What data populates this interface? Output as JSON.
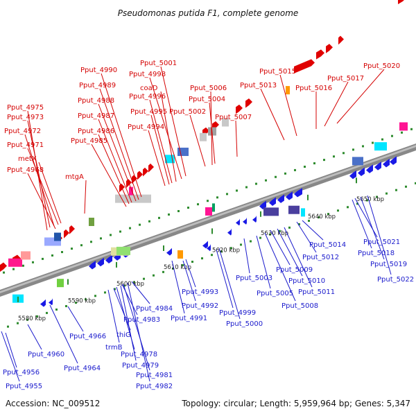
{
  "title": "Pseudomonas putida F1, complete genome",
  "footer": {
    "accession": "Accession: NC_009512",
    "summary": "Topology: circular; Length: 5,959,964 bp; Genes: 5,347"
  },
  "colors": {
    "forward": "#e00000",
    "reverse": "#1a1ae6",
    "backbone": "#888888",
    "tick": "#2e8b2e",
    "label_red": "#d40000",
    "label_blue": "#1a1acc"
  },
  "ticks": [
    "5580 kbp",
    "5590 kbp",
    "5600 kbp",
    "5610 kbp",
    "5620 kbp",
    "5630 kbp",
    "5640 kbp",
    "5650 kbp"
  ],
  "labels_top": [
    "Pput_4975",
    "Pput_4973",
    "Pput_4972",
    "Pput_4971",
    "metX",
    "Pput_4968",
    "mtgA",
    "Pput_4990",
    "Pput_4989",
    "Pput_4988",
    "Pput_4987",
    "Pput_4986",
    "Pput_4985",
    "Pput_5001",
    "Pput_4998",
    "coaD",
    "Pput_4996",
    "Pput_4995",
    "Pput_4994",
    "Pput_5006",
    "Pput_5004",
    "Pput_5002",
    "Pput_5007",
    "Pput_5015",
    "Pput_5013",
    "Pput_5016",
    "Pput_5017",
    "Pput_5020"
  ],
  "labels_bottom": [
    "Pput_4956",
    "Pput_4955",
    "Pput_4960",
    "Pput_4966",
    "Pput_4964",
    "trmB",
    "thiG",
    "Pput_4978",
    "Pput_4979",
    "Pput_4981",
    "Pput_4982",
    "Pput_4984",
    "Pput_4983",
    "Pput_4993",
    "Pput_4992",
    "Pput_4991",
    "Pput_4999",
    "Pput_5000",
    "Pput_5003",
    "Pput_5005",
    "Pput_5009",
    "Pput_5010",
    "Pput_5011",
    "Pput_5008",
    "Pput_5012",
    "Pput_5014",
    "Pput_5021",
    "Pput_5018",
    "Pput_5019",
    "Pput_5022"
  ]
}
